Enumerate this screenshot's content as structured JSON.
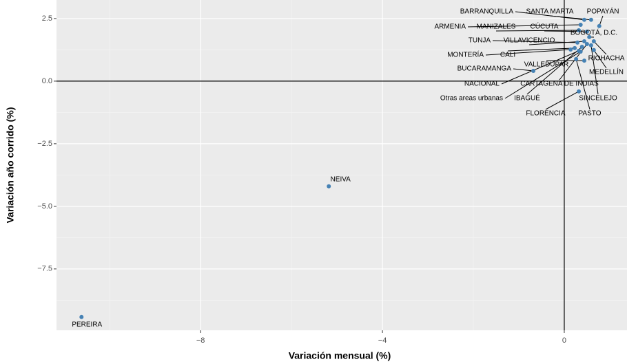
{
  "chart_data": {
    "type": "scatter",
    "xlabel": "Variación mensual (%)",
    "ylabel": "Variación año corrido (%)",
    "color": "#4682b4",
    "labels": [
      "BARRANQUILLA",
      "SANTA MARTA",
      "POPAYÁN",
      "ARMENIA",
      "MANIZALES",
      "CÚCUTA",
      "BOGOTÁ, D.C.",
      "TUNJA",
      "VILLAVICENCIO",
      "RIOHACHA",
      "MONTERÍA",
      "CALI",
      "MEDELLÍN",
      "VALLEDUPAR",
      "BUCARAMANGA",
      "NACIONAL",
      "CARTAGENA DE INDIAS",
      "SINCELEJO",
      "Otras areas urbanas",
      "IBAGUÉ",
      "FLORENCIA",
      "PASTO",
      "NEIVA",
      "PEREIRA"
    ],
    "x": [
      0.44,
      0.59,
      0.77,
      0.36,
      0.32,
      0.5,
      0.55,
      0.29,
      0.44,
      0.65,
      0.14,
      0.23,
      0.65,
      0.44,
      -0.68,
      0.32,
      0.5,
      0.59,
      0.36,
      0.39,
      0.32,
      0.26,
      -5.18,
      -10.62
    ],
    "y": [
      2.45,
      2.45,
      2.2,
      2.25,
      2.03,
      1.98,
      1.76,
      1.54,
      1.59,
      1.59,
      1.26,
      1.32,
      1.24,
      0.82,
      0.41,
      1.21,
      1.48,
      1.43,
      1.18,
      1.37,
      -0.41,
      0.88,
      -4.2,
      -9.42
    ],
    "xlim": [
      -11.17,
      1.38
    ],
    "ylim": [
      -9.95,
      3.24
    ],
    "xticks": [
      {
        "value": -8,
        "label": "−8"
      },
      {
        "value": -4,
        "label": "−4"
      },
      0
    ],
    "yticks": [
      {
        "value": 2.5,
        "label": "2.5"
      },
      {
        "value": 0,
        "label": "0.0"
      },
      {
        "value": -2.5,
        "label": "−2.5"
      },
      {
        "value": -5,
        "label": "−5.0"
      },
      {
        "value": -7.5,
        "label": "−7.5"
      }
    ],
    "xminor": [
      -10,
      -6,
      -2
    ],
    "yminor": [
      1.25,
      -1.25,
      -3.75,
      -6.25,
      -8.75
    ],
    "reference_lines": {
      "x": 0,
      "y": 0
    },
    "grid": true
  }
}
